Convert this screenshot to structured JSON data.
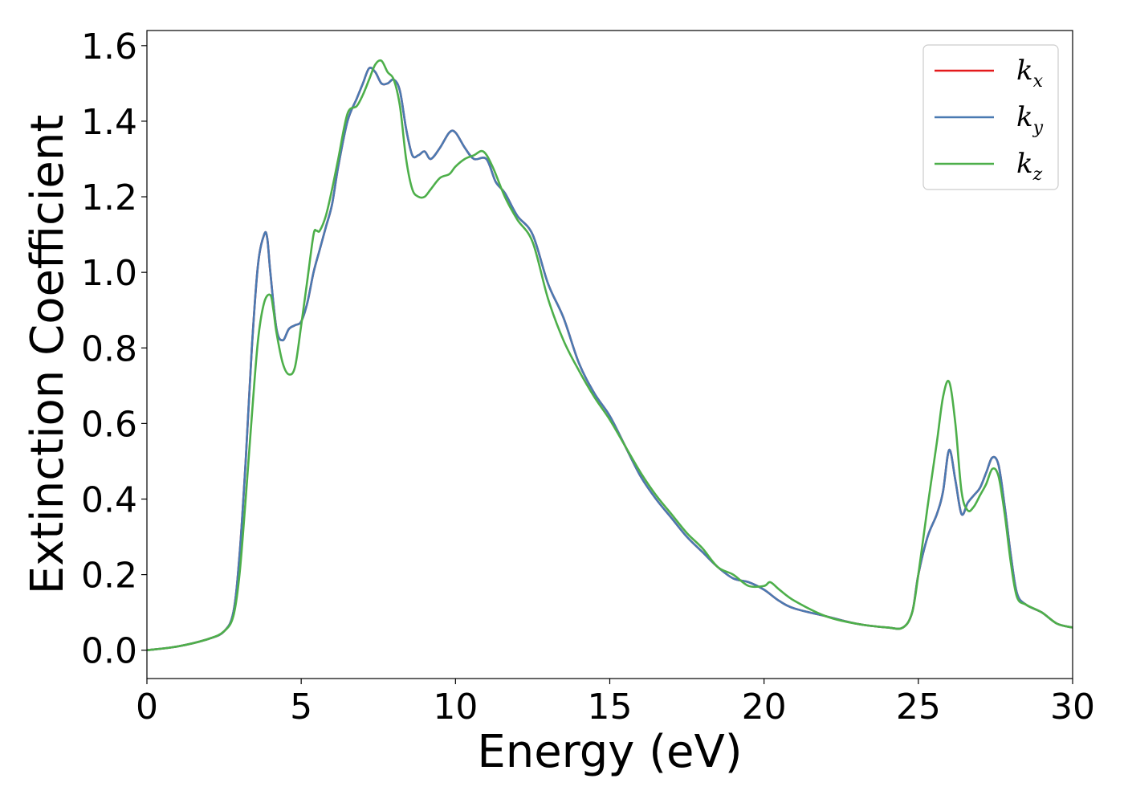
{
  "chart_data": {
    "type": "line",
    "title": "",
    "xlabel": "Energy (eV)",
    "ylabel": "Extinction Coefficient",
    "xlim": [
      0,
      30
    ],
    "ylim": [
      -0.075,
      1.64
    ],
    "xticks": [
      0,
      5,
      10,
      15,
      20,
      25,
      30
    ],
    "xtick_labels": [
      "0",
      "5",
      "10",
      "15",
      "20",
      "25",
      "30"
    ],
    "yticks": [
      0.0,
      0.2,
      0.4,
      0.6,
      0.8,
      1.0,
      1.2,
      1.4,
      1.6
    ],
    "ytick_labels": [
      "0.0",
      "0.2",
      "0.4",
      "0.6",
      "0.8",
      "1.0",
      "1.2",
      "1.4",
      "1.6"
    ],
    "grid": false,
    "legend_position": "top-right",
    "series": [
      {
        "name": "k_x",
        "label_main": "k",
        "label_sub": "x",
        "color": "#e41a1c",
        "x": [
          0,
          1,
          2,
          2.5,
          2.8,
          3.0,
          3.2,
          3.4,
          3.6,
          3.8,
          3.9,
          4.0,
          4.2,
          4.4,
          4.6,
          4.8,
          5.0,
          5.2,
          5.4,
          5.6,
          5.8,
          6.0,
          6.2,
          6.5,
          6.8,
          7.0,
          7.2,
          7.4,
          7.6,
          7.8,
          8.0,
          8.2,
          8.4,
          8.6,
          8.8,
          9.0,
          9.2,
          9.5,
          9.8,
          10.0,
          10.3,
          10.6,
          11.0,
          11.3,
          11.6,
          12.0,
          12.5,
          13.0,
          13.5,
          14.0,
          14.5,
          15.0,
          15.5,
          16.0,
          16.5,
          17.0,
          17.5,
          18.0,
          18.5,
          19.0,
          19.5,
          20.0,
          20.5,
          21.0,
          22.0,
          23.0,
          24.0,
          24.5,
          24.8,
          25.0,
          25.3,
          25.6,
          25.8,
          26.0,
          26.2,
          26.4,
          26.6,
          26.8,
          27.0,
          27.2,
          27.4,
          27.6,
          27.8,
          28.0,
          28.2,
          28.5,
          29.0,
          29.5,
          30.0
        ],
        "y": [
          0.0,
          0.01,
          0.03,
          0.05,
          0.1,
          0.25,
          0.5,
          0.8,
          1.02,
          1.1,
          1.09,
          1.0,
          0.85,
          0.82,
          0.85,
          0.86,
          0.87,
          0.92,
          1.0,
          1.06,
          1.12,
          1.18,
          1.28,
          1.4,
          1.46,
          1.5,
          1.54,
          1.53,
          1.5,
          1.5,
          1.51,
          1.48,
          1.38,
          1.31,
          1.31,
          1.32,
          1.3,
          1.33,
          1.37,
          1.37,
          1.33,
          1.3,
          1.3,
          1.24,
          1.21,
          1.15,
          1.1,
          0.97,
          0.88,
          0.76,
          0.68,
          0.62,
          0.54,
          0.46,
          0.4,
          0.35,
          0.3,
          0.26,
          0.22,
          0.19,
          0.18,
          0.16,
          0.13,
          0.11,
          0.09,
          0.07,
          0.06,
          0.06,
          0.1,
          0.2,
          0.3,
          0.36,
          0.42,
          0.53,
          0.45,
          0.36,
          0.39,
          0.41,
          0.43,
          0.47,
          0.51,
          0.49,
          0.38,
          0.25,
          0.15,
          0.12,
          0.1,
          0.07,
          0.06
        ]
      },
      {
        "name": "k_y",
        "label_main": "k",
        "label_sub": "y",
        "color": "#4a7ab2",
        "x": [
          0,
          1,
          2,
          2.5,
          2.8,
          3.0,
          3.2,
          3.4,
          3.6,
          3.8,
          3.9,
          4.0,
          4.2,
          4.4,
          4.6,
          4.8,
          5.0,
          5.2,
          5.4,
          5.6,
          5.8,
          6.0,
          6.2,
          6.5,
          6.8,
          7.0,
          7.2,
          7.4,
          7.6,
          7.8,
          8.0,
          8.2,
          8.4,
          8.6,
          8.8,
          9.0,
          9.2,
          9.5,
          9.8,
          10.0,
          10.3,
          10.6,
          11.0,
          11.3,
          11.6,
          12.0,
          12.5,
          13.0,
          13.5,
          14.0,
          14.5,
          15.0,
          15.5,
          16.0,
          16.5,
          17.0,
          17.5,
          18.0,
          18.5,
          19.0,
          19.5,
          20.0,
          20.5,
          21.0,
          22.0,
          23.0,
          24.0,
          24.5,
          24.8,
          25.0,
          25.3,
          25.6,
          25.8,
          26.0,
          26.2,
          26.4,
          26.6,
          26.8,
          27.0,
          27.2,
          27.4,
          27.6,
          27.8,
          28.0,
          28.2,
          28.5,
          29.0,
          29.5,
          30.0
        ],
        "y": [
          0.0,
          0.01,
          0.03,
          0.05,
          0.1,
          0.25,
          0.5,
          0.8,
          1.02,
          1.1,
          1.09,
          1.0,
          0.85,
          0.82,
          0.85,
          0.86,
          0.87,
          0.92,
          1.0,
          1.06,
          1.12,
          1.18,
          1.28,
          1.4,
          1.46,
          1.5,
          1.54,
          1.53,
          1.5,
          1.5,
          1.51,
          1.48,
          1.38,
          1.31,
          1.31,
          1.32,
          1.3,
          1.33,
          1.37,
          1.37,
          1.33,
          1.3,
          1.3,
          1.24,
          1.21,
          1.15,
          1.1,
          0.97,
          0.88,
          0.76,
          0.68,
          0.62,
          0.54,
          0.46,
          0.4,
          0.35,
          0.3,
          0.26,
          0.22,
          0.19,
          0.18,
          0.16,
          0.13,
          0.11,
          0.09,
          0.07,
          0.06,
          0.06,
          0.1,
          0.2,
          0.3,
          0.36,
          0.42,
          0.53,
          0.45,
          0.36,
          0.39,
          0.41,
          0.43,
          0.47,
          0.51,
          0.49,
          0.38,
          0.25,
          0.15,
          0.12,
          0.1,
          0.07,
          0.06
        ]
      },
      {
        "name": "k_z",
        "label_main": "k",
        "label_sub": "z",
        "color": "#4daf4a",
        "x": [
          0,
          1,
          2,
          2.5,
          2.8,
          3.0,
          3.2,
          3.4,
          3.6,
          3.8,
          4.0,
          4.1,
          4.2,
          4.4,
          4.6,
          4.8,
          5.0,
          5.2,
          5.4,
          5.5,
          5.6,
          5.8,
          6.0,
          6.2,
          6.5,
          6.8,
          7.0,
          7.2,
          7.4,
          7.6,
          7.8,
          8.0,
          8.2,
          8.4,
          8.6,
          8.8,
          9.0,
          9.2,
          9.5,
          9.8,
          10.0,
          10.3,
          10.6,
          10.9,
          11.2,
          11.6,
          12.0,
          12.5,
          13.0,
          13.5,
          14.0,
          14.5,
          15.0,
          15.5,
          16.0,
          16.5,
          17.0,
          17.5,
          18.0,
          18.5,
          19.0,
          19.5,
          20.0,
          20.2,
          20.5,
          21.0,
          22.0,
          23.0,
          24.0,
          24.5,
          24.8,
          25.0,
          25.3,
          25.6,
          25.8,
          26.0,
          26.2,
          26.4,
          26.6,
          26.8,
          27.0,
          27.2,
          27.4,
          27.6,
          27.8,
          28.0,
          28.2,
          28.5,
          29.0,
          29.5,
          30.0
        ],
        "y": [
          0.0,
          0.01,
          0.03,
          0.05,
          0.09,
          0.2,
          0.4,
          0.62,
          0.82,
          0.92,
          0.94,
          0.9,
          0.84,
          0.76,
          0.73,
          0.75,
          0.86,
          0.98,
          1.1,
          1.11,
          1.11,
          1.15,
          1.22,
          1.3,
          1.42,
          1.44,
          1.47,
          1.51,
          1.55,
          1.56,
          1.53,
          1.51,
          1.44,
          1.3,
          1.22,
          1.2,
          1.2,
          1.22,
          1.25,
          1.26,
          1.28,
          1.3,
          1.31,
          1.32,
          1.28,
          1.2,
          1.14,
          1.08,
          0.93,
          0.82,
          0.74,
          0.67,
          0.61,
          0.54,
          0.47,
          0.41,
          0.36,
          0.31,
          0.27,
          0.22,
          0.2,
          0.17,
          0.17,
          0.18,
          0.16,
          0.13,
          0.09,
          0.07,
          0.06,
          0.06,
          0.1,
          0.2,
          0.38,
          0.55,
          0.67,
          0.71,
          0.6,
          0.42,
          0.37,
          0.38,
          0.41,
          0.44,
          0.48,
          0.46,
          0.36,
          0.23,
          0.14,
          0.12,
          0.1,
          0.07,
          0.06
        ]
      }
    ]
  }
}
